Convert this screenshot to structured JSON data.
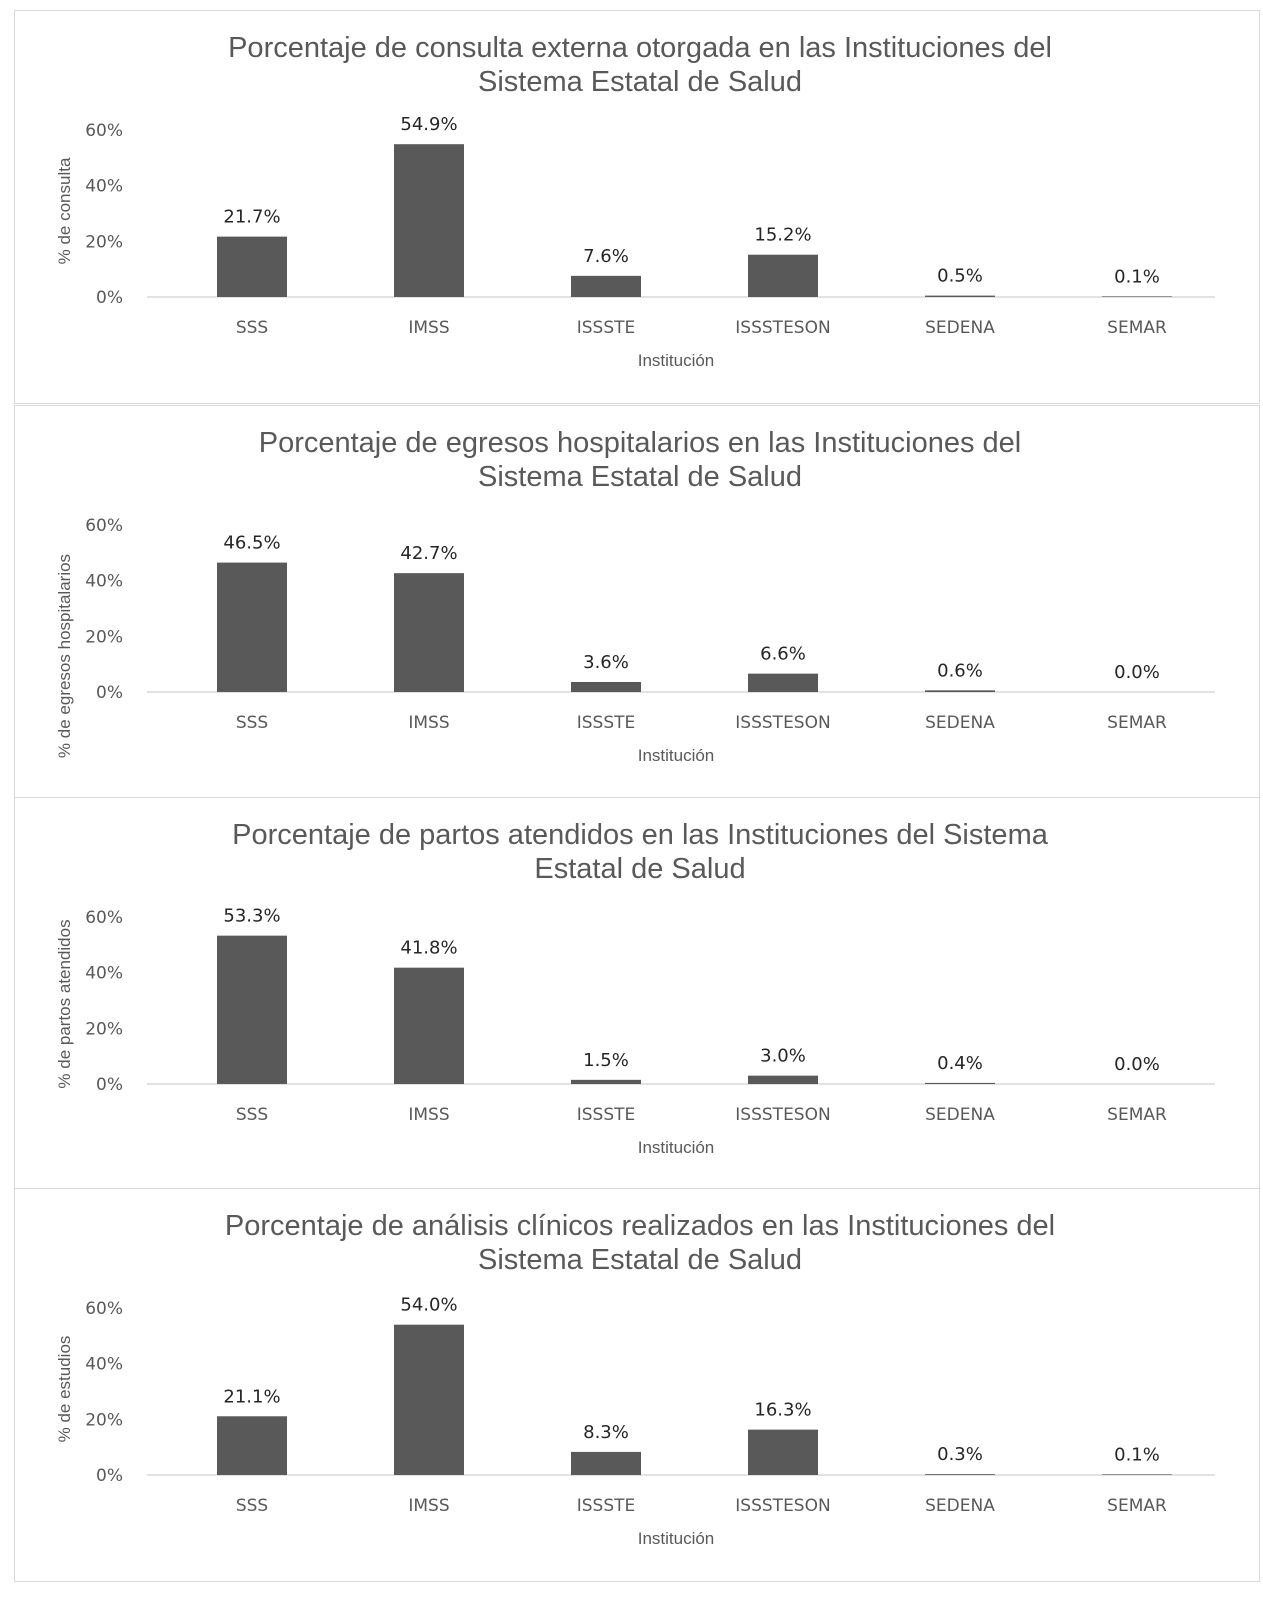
{
  "chart_data": [
    {
      "type": "bar",
      "title_lines": [
        "Porcentaje de consulta externa otorgada en las Instituciones del",
        "Sistema Estatal de Salud"
      ],
      "xlabel": "Institución",
      "ylabel": "% de consulta",
      "categories": [
        "SSS",
        "IMSS",
        "ISSSTE",
        "ISSSTESON",
        "SEDENA",
        "SEMAR"
      ],
      "values": [
        21.7,
        54.9,
        7.6,
        15.2,
        0.5,
        0.1
      ],
      "value_labels": [
        "21.7%",
        "54.9%",
        "7.6%",
        "15.2%",
        "0.5%",
        "0.1%"
      ],
      "y_ticks": [
        "0%",
        "20%",
        "40%",
        "60%"
      ],
      "ylim": [
        0,
        60
      ],
      "bar_color": "#595959",
      "grid": false
    },
    {
      "type": "bar",
      "title_lines": [
        "Porcentaje de egresos hospitalarios en las Instituciones del",
        "Sistema Estatal de Salud"
      ],
      "xlabel": "Institución",
      "ylabel": "% de egresos hospitalarios",
      "categories": [
        "SSS",
        "IMSS",
        "ISSSTE",
        "ISSSTESON",
        "SEDENA",
        "SEMAR"
      ],
      "values": [
        46.5,
        42.7,
        3.6,
        6.6,
        0.6,
        0.0
      ],
      "value_labels": [
        "46.5%",
        "42.7%",
        "3.6%",
        "6.6%",
        "0.6%",
        "0.0%"
      ],
      "y_ticks": [
        "0%",
        "20%",
        "40%",
        "60%"
      ],
      "ylim": [
        0,
        60
      ],
      "bar_color": "#595959",
      "grid": false
    },
    {
      "type": "bar",
      "title_lines": [
        "Porcentaje de partos atendidos en las Instituciones del Sistema",
        "Estatal de Salud"
      ],
      "xlabel": "Institución",
      "ylabel": "% de partos atendidos",
      "categories": [
        "SSS",
        "IMSS",
        "ISSSTE",
        "ISSSTESON",
        "SEDENA",
        "SEMAR"
      ],
      "values": [
        53.3,
        41.8,
        1.5,
        3.0,
        0.4,
        0.0
      ],
      "value_labels": [
        "53.3%",
        "41.8%",
        "1.5%",
        "3.0%",
        "0.4%",
        "0.0%"
      ],
      "y_ticks": [
        "0%",
        "20%",
        "40%",
        "60%"
      ],
      "ylim": [
        0,
        60
      ],
      "bar_color": "#595959",
      "grid": false
    },
    {
      "type": "bar",
      "title_lines": [
        "Porcentaje de análisis clínicos realizados en las Instituciones del",
        "Sistema Estatal de Salud"
      ],
      "xlabel": "Institución",
      "ylabel": "% de estudios",
      "categories": [
        "SSS",
        "IMSS",
        "ISSSTE",
        "ISSSTESON",
        "SEDENA",
        "SEMAR"
      ],
      "values": [
        21.1,
        54.0,
        8.3,
        16.3,
        0.3,
        0.1
      ],
      "value_labels": [
        "21.1%",
        "54.0%",
        "8.3%",
        "16.3%",
        "0.3%",
        "0.1%"
      ],
      "y_ticks": [
        "0%",
        "20%",
        "40%",
        "60%"
      ],
      "ylim": [
        0,
        60
      ],
      "bar_color": "#595959",
      "grid": false
    }
  ]
}
